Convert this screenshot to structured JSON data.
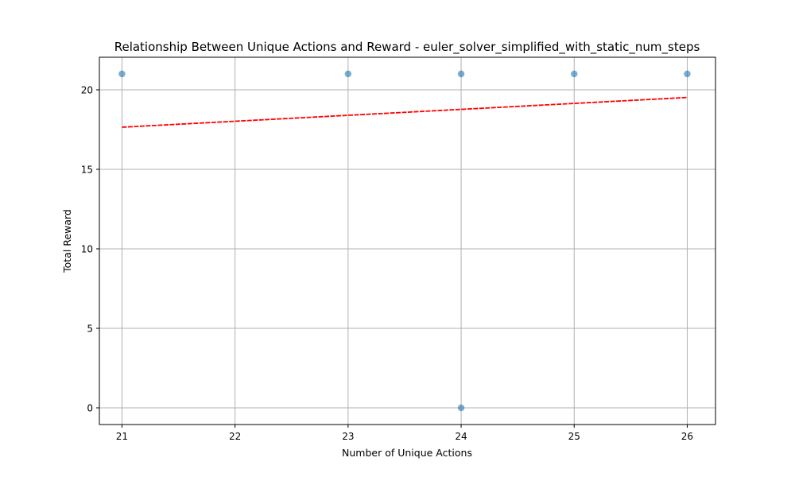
{
  "chart_data": {
    "type": "scatter",
    "title": "Relationship Between Unique Actions and Reward - euler_solver_simplified_with_static_num_steps",
    "xlabel": "Number of Unique Actions",
    "ylabel": "Total Reward",
    "xlim": [
      20.8,
      26.25
    ],
    "ylim": [
      -1.05,
      22.05
    ],
    "xticks": [
      21,
      22,
      23,
      24,
      25,
      26
    ],
    "yticks": [
      0,
      5,
      10,
      15,
      20
    ],
    "grid": true,
    "points": [
      {
        "x": 21,
        "y": 21
      },
      {
        "x": 23,
        "y": 21
      },
      {
        "x": 24,
        "y": 21
      },
      {
        "x": 24,
        "y": 0
      },
      {
        "x": 25,
        "y": 21
      },
      {
        "x": 26,
        "y": 21
      }
    ],
    "trendline": {
      "x": [
        21,
        26
      ],
      "y": [
        17.65,
        19.52
      ]
    },
    "colors": {
      "points": "#1f77b4",
      "trendline": "#ff0000",
      "grid": "#b0b0b0"
    }
  }
}
